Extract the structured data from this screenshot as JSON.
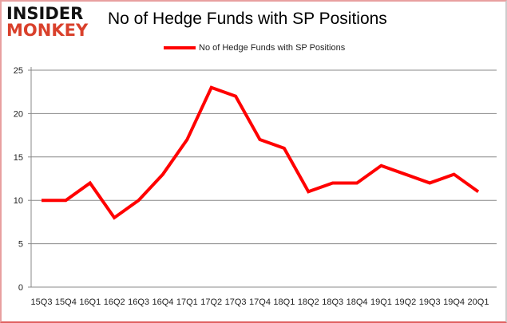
{
  "logo": {
    "line1": "INSIDER",
    "line2": "MONKEY"
  },
  "chart_data": {
    "type": "line",
    "title": "No of Hedge Funds with SP Positions",
    "xlabel": "",
    "ylabel": "",
    "categories": [
      "15Q3",
      "15Q4",
      "16Q1",
      "16Q2",
      "16Q3",
      "16Q4",
      "17Q1",
      "17Q2",
      "17Q3",
      "17Q4",
      "18Q1",
      "18Q2",
      "18Q3",
      "18Q4",
      "19Q1",
      "19Q2",
      "19Q3",
      "19Q4",
      "20Q1"
    ],
    "series": [
      {
        "name": "No of Hedge Funds with SP Positions",
        "values": [
          10,
          10,
          12,
          8,
          10,
          13,
          17,
          23,
          22,
          17,
          16,
          11,
          12,
          12,
          14,
          13,
          12,
          13,
          11
        ],
        "color": "#ff0000"
      }
    ],
    "ylim": [
      0,
      25
    ],
    "yticks": [
      0,
      5,
      10,
      15,
      20,
      25
    ],
    "grid": true,
    "legend": "top-center"
  }
}
